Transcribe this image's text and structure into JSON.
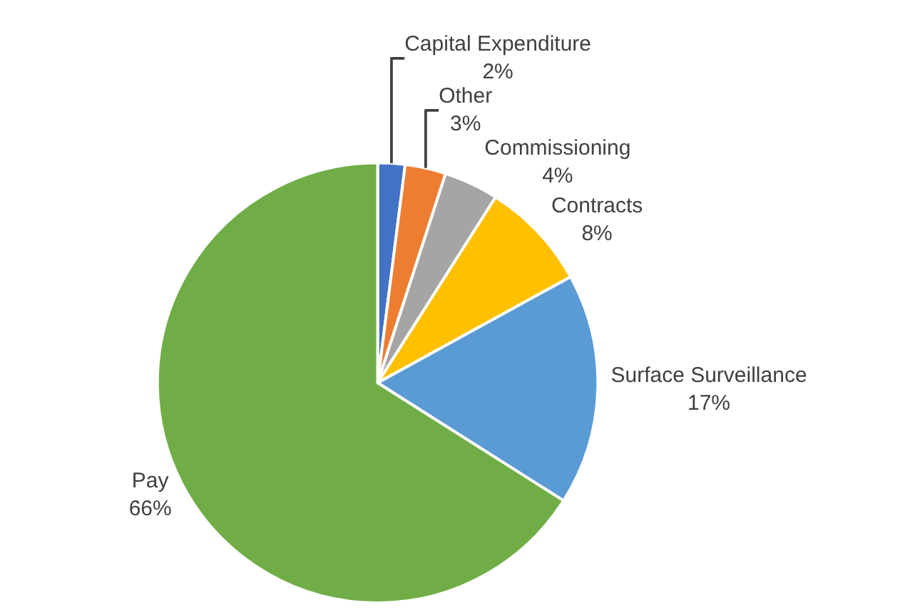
{
  "chart_data": {
    "type": "pie",
    "categories": [
      "Capital Expenditure",
      "Other",
      "Commissioning",
      "Contracts",
      "Surface Surveillance",
      "Pay"
    ],
    "values": [
      2,
      3,
      4,
      8,
      17,
      66
    ],
    "value_labels": [
      "2%",
      "3%",
      "4%",
      "8%",
      "17%",
      "66%"
    ],
    "colors": [
      "#4472c4",
      "#ed7d31",
      "#a5a5a5",
      "#ffc000",
      "#5b9bd5",
      "#70ad47"
    ],
    "legend": false
  }
}
